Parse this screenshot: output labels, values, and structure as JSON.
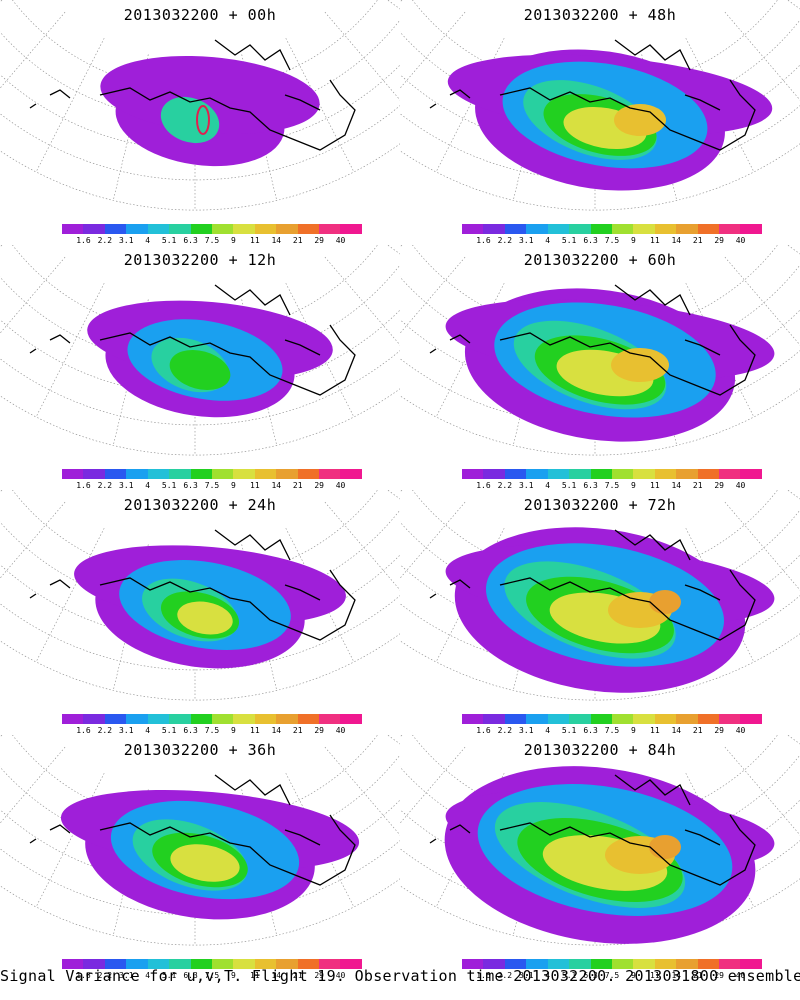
{
  "panels": [
    {
      "title": "2013032200 + 00h",
      "stage": 0
    },
    {
      "title": "2013032200 + 48h",
      "stage": 4
    },
    {
      "title": "2013032200 + 12h",
      "stage": 1
    },
    {
      "title": "2013032200 + 60h",
      "stage": 5
    },
    {
      "title": "2013032200 + 24h",
      "stage": 2
    },
    {
      "title": "2013032200 + 72h",
      "stage": 6
    },
    {
      "title": "2013032200 + 36h",
      "stage": 3
    },
    {
      "title": "2013032200 + 84h",
      "stage": 7
    }
  ],
  "colorbar": {
    "labels": [
      "1.6",
      "2.2",
      "3.1",
      "4",
      "5.1",
      "6.3",
      "7.5",
      "9",
      "11",
      "14",
      "21",
      "29",
      "40"
    ],
    "colors": [
      "#9f1fd9",
      "#7a2ae0",
      "#2a58f0",
      "#1aa0f0",
      "#22c0d8",
      "#28d0a0",
      "#22d020",
      "#a0e030",
      "#d8e040",
      "#e8c030",
      "#e8a030",
      "#f07028",
      "#f03080",
      "#f01890"
    ]
  },
  "caption": "Signal Variance for u,v,T. Flight 19. Observation time 2013032200. 2013031800 ensemble."
}
